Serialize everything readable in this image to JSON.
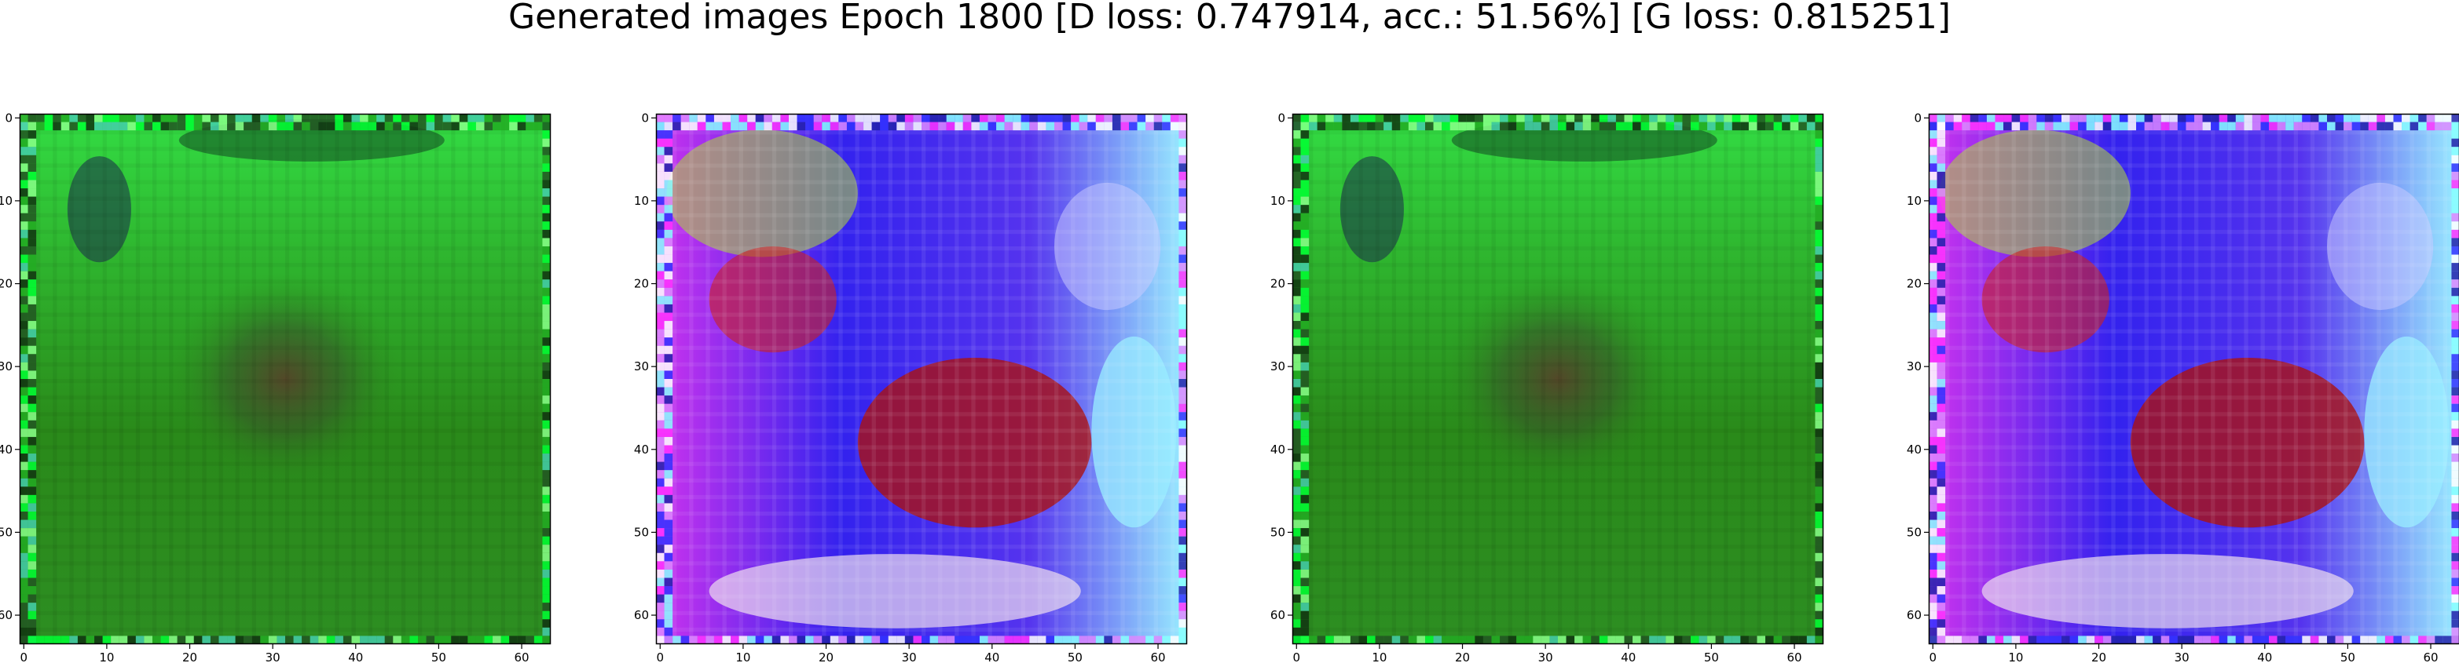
{
  "figure": {
    "title": "Generated images Epoch 1800 [D loss: 0.747914, acc.: 51.56%] [G loss: 0.815251]"
  },
  "panels": [
    {
      "name": "generated-image-1",
      "palette": "green"
    },
    {
      "name": "generated-image-2",
      "palette": "purple"
    },
    {
      "name": "generated-image-3",
      "palette": "green"
    },
    {
      "name": "generated-image-4",
      "palette": "purple"
    }
  ],
  "axes": {
    "x_ticks": [
      "0",
      "10",
      "20",
      "30",
      "40",
      "50",
      "60"
    ],
    "y_ticks": [
      "0",
      "10",
      "20",
      "30",
      "40",
      "50",
      "60"
    ],
    "range": [
      0,
      63
    ],
    "grid": false
  },
  "colors": {
    "green_base": "#2a8a1a",
    "green_light": "#33dd44",
    "magenta": "#cc33ee",
    "blue": "#3322ee",
    "red": "#aa1111",
    "white": "#eeddee",
    "cyan": "#99eeff"
  }
}
